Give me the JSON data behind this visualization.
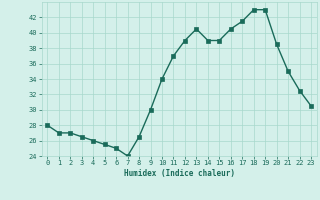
{
  "x": [
    0,
    1,
    2,
    3,
    4,
    5,
    6,
    7,
    8,
    9,
    10,
    11,
    12,
    13,
    14,
    15,
    16,
    17,
    18,
    19,
    20,
    21,
    22,
    23
  ],
  "y": [
    28,
    27,
    27,
    26.5,
    26,
    25.5,
    25,
    24,
    26.5,
    30,
    34,
    37,
    39,
    40.5,
    39,
    39,
    40.5,
    41.5,
    43,
    43,
    38.5,
    35,
    32.5,
    30.5
  ],
  "xlabel": "Humidex (Indice chaleur)",
  "ylim": [
    24,
    44
  ],
  "xlim": [
    -0.5,
    23.5
  ],
  "yticks": [
    24,
    26,
    28,
    30,
    32,
    34,
    36,
    38,
    40,
    42
  ],
  "xticks": [
    0,
    1,
    2,
    3,
    4,
    5,
    6,
    7,
    8,
    9,
    10,
    11,
    12,
    13,
    14,
    15,
    16,
    17,
    18,
    19,
    20,
    21,
    22,
    23
  ],
  "line_color": "#1a6b5a",
  "marker_color": "#1a6b5a",
  "bg_color": "#d4f0ea",
  "grid_color": "#a8d8cc",
  "xlabel_color": "#1a6b5a",
  "tick_color": "#1a6b5a",
  "tick_fontsize": 5.0,
  "xlabel_fontsize": 5.5,
  "linewidth": 1.0,
  "markersize": 2.2
}
